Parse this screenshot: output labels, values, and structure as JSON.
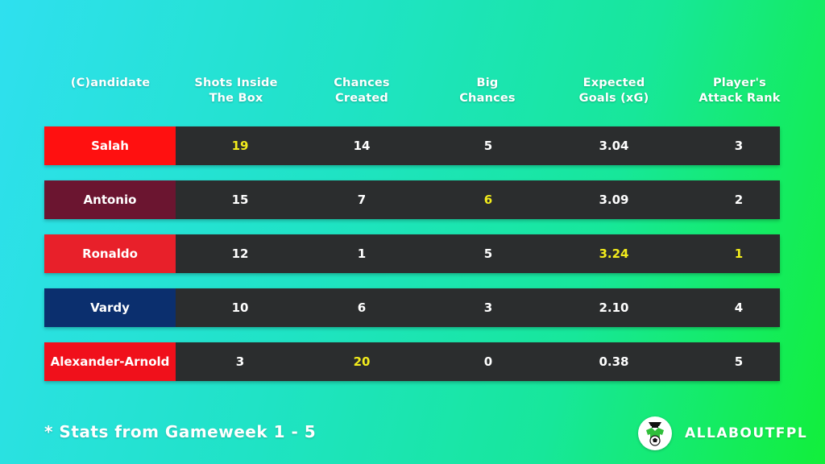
{
  "headers": [
    "(C)andidate",
    "Shots Inside\nThe Box",
    "Chances\nCreated",
    "Big\nChances",
    "Expected\nGoals (xG)",
    "Player's\nAttack Rank"
  ],
  "rows": [
    {
      "name": "Salah",
      "color": "#ff1010",
      "values": [
        "19",
        "14",
        "5",
        "3.04",
        "3"
      ],
      "highlight": [
        0
      ]
    },
    {
      "name": "Antonio",
      "color": "#6b1530",
      "values": [
        "15",
        "7",
        "6",
        "3.09",
        "2"
      ],
      "highlight": [
        2
      ]
    },
    {
      "name": "Ronaldo",
      "color": "#e8202a",
      "values": [
        "12",
        "1",
        "5",
        "3.24",
        "1"
      ],
      "highlight": [
        3,
        4
      ]
    },
    {
      "name": "Vardy",
      "color": "#0b2f6e",
      "values": [
        "10",
        "6",
        "3",
        "2.10",
        "4"
      ],
      "highlight": []
    },
    {
      "name": "Alexander-Arnold",
      "color": "#f0101b",
      "values": [
        "3",
        "20",
        "0",
        "0.38",
        "5"
      ],
      "highlight": [
        1
      ]
    }
  ],
  "highlight_color": "#f3ec1c",
  "footnote": "* Stats from Gameweek 1 - 5",
  "brand": {
    "text": "ALLABOUTFPL",
    "icon": "football-player-icon"
  }
}
